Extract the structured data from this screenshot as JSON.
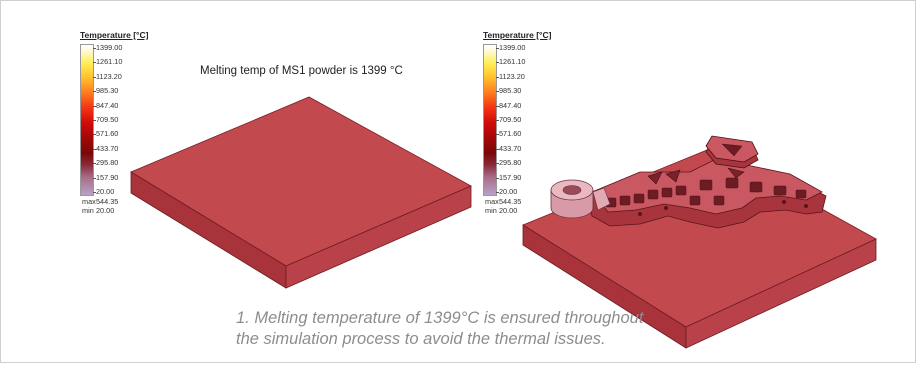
{
  "legend_left": {
    "title": "Temperature [°C]",
    "ticks": [
      "1399.00",
      "1261.10",
      "1123.20",
      "985.30",
      "847.40",
      "709.50",
      "571.60",
      "433.70",
      "295.80",
      "157.90",
      "20.00"
    ],
    "max_label": "max",
    "max_value": "544.35",
    "min_label": "min",
    "min_value": "20.00"
  },
  "legend_right": {
    "title": "Temperature [°C]",
    "ticks": [
      "1399.00",
      "1261.10",
      "1123.20",
      "985.30",
      "847.40",
      "709.50",
      "571.60",
      "433.70",
      "295.80",
      "157.90",
      "20.00"
    ],
    "max_label": "max",
    "max_value": "544.35",
    "min_label": "min",
    "min_value": "20.00"
  },
  "annotation": "Melting temp of MS1 powder is 1399 °C",
  "caption": {
    "line1": "1. Melting temperature of 1399°C is ensured throughout",
    "line2": "the simulation process to avoid the thermal issues."
  },
  "colors": {
    "plate_top": "#c24a4f",
    "plate_left": "#a8333a",
    "plate_right": "#b8414a",
    "part_pink": "#eab8c1",
    "caption_text": "#8d8d8d"
  }
}
